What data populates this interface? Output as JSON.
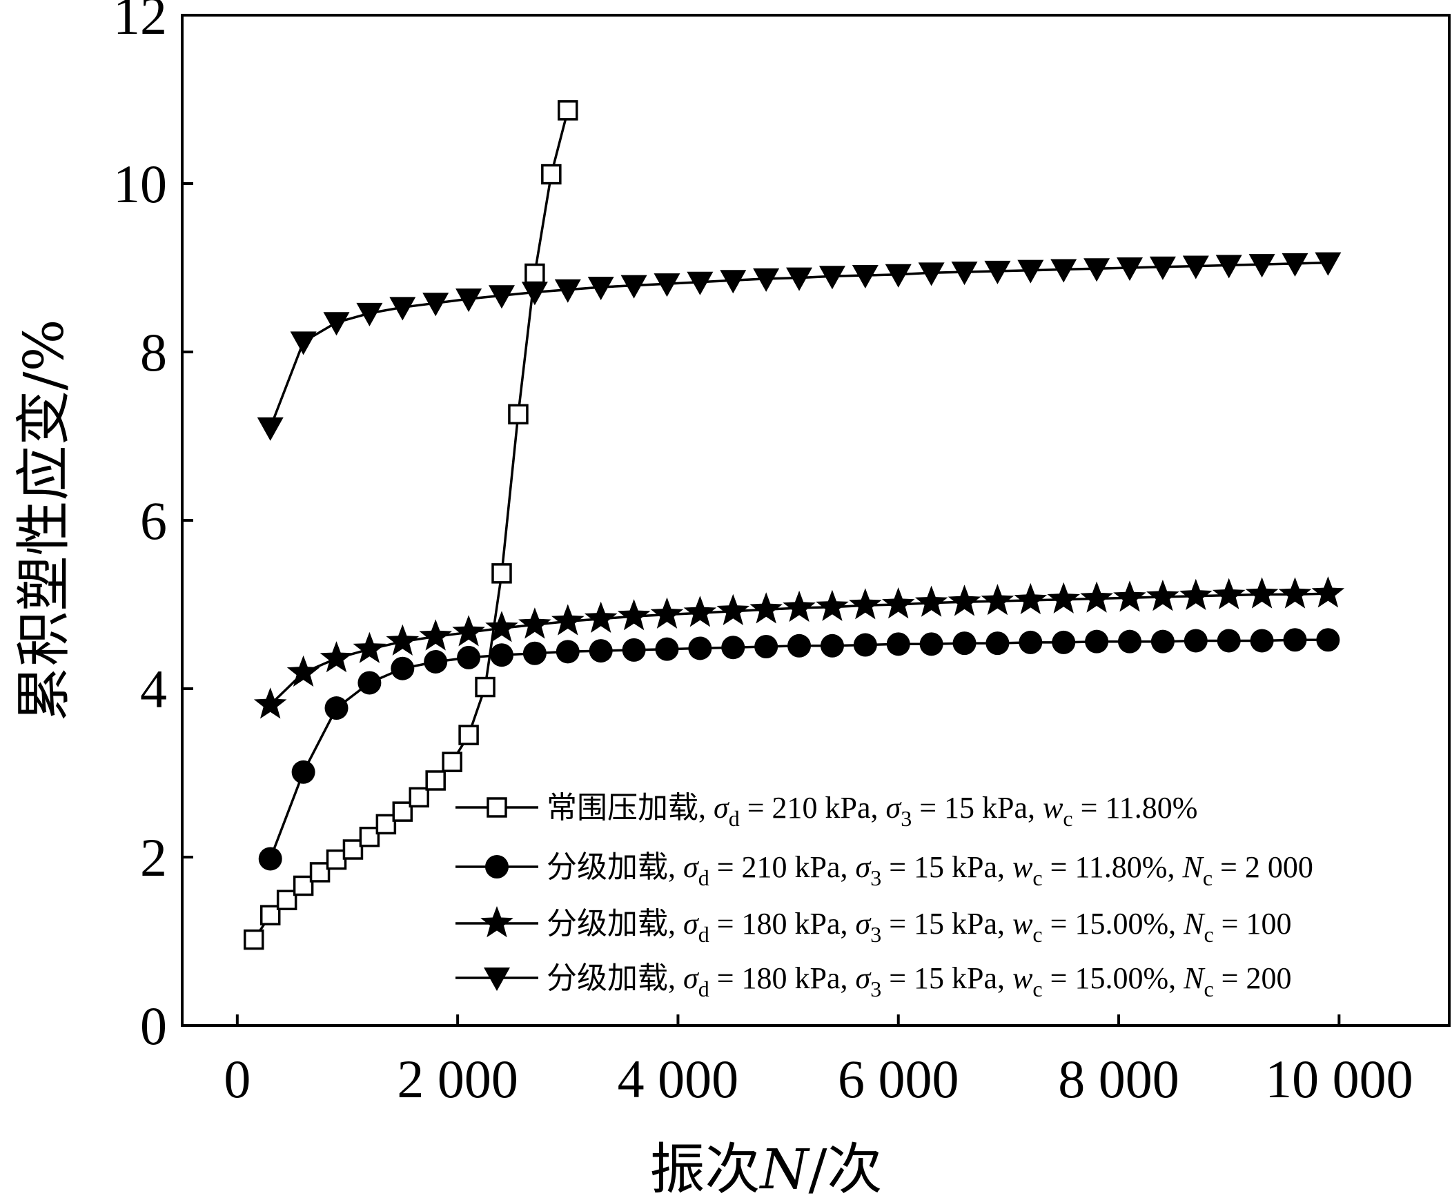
{
  "chart_data": {
    "type": "line",
    "xlabel": {
      "prefix": "振次",
      "var": "N",
      "suffix": "/次"
    },
    "ylabel": "累积塑性应变/%",
    "xlim": [
      -500,
      11000
    ],
    "ylim": [
      0,
      12
    ],
    "xticks": [
      0,
      2000,
      4000,
      6000,
      8000,
      10000
    ],
    "xtick_labels": [
      "0",
      "2 000",
      "4 000",
      "6 000",
      "8 000",
      "10 000"
    ],
    "yticks": [
      0,
      2,
      4,
      6,
      8,
      10,
      12
    ],
    "ytick_labels": [
      "0",
      "2",
      "4",
      "6",
      "8",
      "10",
      "12"
    ],
    "grid": false,
    "legend_position": "lower-right",
    "series": [
      {
        "name": "常围压加载, σd = 210 kPa, σ3 = 15 kPa, wc = 11.80%",
        "legend": {
          "method": "常围压加载",
          "sd": "210",
          "s3": "15",
          "wc": "11.80%",
          "nc": ""
        },
        "marker": "square-open",
        "x": [
          150,
          300,
          450,
          600,
          750,
          900,
          1050,
          1200,
          1350,
          1500,
          1650,
          1800,
          1950,
          2100,
          2250,
          2400,
          2550,
          2700,
          2850,
          3000
        ],
        "y": [
          1.02,
          1.31,
          1.49,
          1.66,
          1.82,
          1.97,
          2.09,
          2.24,
          2.39,
          2.54,
          2.71,
          2.91,
          3.13,
          3.45,
          4.02,
          5.37,
          7.26,
          8.93,
          10.11,
          10.87
        ]
      },
      {
        "name": "分级加载, σd = 210 kPa, σ3 = 15 kPa, wc = 11.80%, Nc = 2 000",
        "legend": {
          "method": "分级加载",
          "sd": "210",
          "s3": "15",
          "wc": "11.80%",
          "nc": "2 000"
        },
        "marker": "circle-filled",
        "x": [
          300,
          600,
          900,
          1200,
          1500,
          1800,
          2100,
          2400,
          2700,
          3000,
          3300,
          3600,
          3900,
          4200,
          4500,
          4800,
          5100,
          5400,
          5700,
          6000,
          6300,
          6600,
          6900,
          7200,
          7500,
          7800,
          8100,
          8400,
          8700,
          9000,
          9300,
          9600,
          9900
        ],
        "y": [
          1.98,
          3.01,
          3.77,
          4.07,
          4.24,
          4.32,
          4.37,
          4.4,
          4.42,
          4.44,
          4.45,
          4.46,
          4.47,
          4.48,
          4.49,
          4.5,
          4.51,
          4.51,
          4.52,
          4.53,
          4.53,
          4.54,
          4.54,
          4.55,
          4.55,
          4.56,
          4.56,
          4.56,
          4.57,
          4.57,
          4.57,
          4.58,
          4.58
        ]
      },
      {
        "name": "分级加载, σd = 180 kPa, σ3 = 15 kPa, wc = 15.00%, Nc = 100",
        "legend": {
          "method": "分级加载",
          "sd": "180",
          "s3": "15",
          "wc": "15.00%",
          "nc": "100"
        },
        "marker": "star-filled",
        "x": [
          300,
          600,
          900,
          1200,
          1500,
          1800,
          2100,
          2400,
          2700,
          3000,
          3300,
          3600,
          3900,
          4200,
          4500,
          4800,
          5100,
          5400,
          5700,
          6000,
          6300,
          6600,
          6900,
          7200,
          7500,
          7800,
          8100,
          8400,
          8700,
          9000,
          9300,
          9600,
          9900
        ],
        "y": [
          3.81,
          4.19,
          4.36,
          4.47,
          4.56,
          4.62,
          4.67,
          4.72,
          4.76,
          4.8,
          4.83,
          4.86,
          4.88,
          4.9,
          4.92,
          4.94,
          4.96,
          4.97,
          4.99,
          5.0,
          5.02,
          5.03,
          5.04,
          5.05,
          5.06,
          5.07,
          5.08,
          5.09,
          5.1,
          5.11,
          5.12,
          5.12,
          5.13
        ]
      },
      {
        "name": "分级加载, σd = 180 kPa, σ3 = 15 kPa, wc = 15.00%, Nc = 200",
        "legend": {
          "method": "分级加载",
          "sd": "180",
          "s3": "15",
          "wc": "15.00%",
          "nc": "200"
        },
        "marker": "triangle-down-filled",
        "x": [
          300,
          600,
          900,
          1200,
          1500,
          1800,
          2100,
          2400,
          2700,
          3000,
          3300,
          3600,
          3900,
          4200,
          4500,
          4800,
          5100,
          5400,
          5700,
          6000,
          6300,
          6600,
          6900,
          7200,
          7500,
          7800,
          8100,
          8400,
          8700,
          9000,
          9300,
          9600,
          9900
        ],
        "y": [
          7.1,
          8.12,
          8.35,
          8.46,
          8.53,
          8.58,
          8.63,
          8.67,
          8.71,
          8.74,
          8.77,
          8.79,
          8.81,
          8.83,
          8.85,
          8.87,
          8.88,
          8.9,
          8.91,
          8.92,
          8.94,
          8.95,
          8.96,
          8.97,
          8.98,
          8.99,
          9.0,
          9.01,
          9.02,
          9.03,
          9.04,
          9.05,
          9.06
        ]
      }
    ]
  }
}
